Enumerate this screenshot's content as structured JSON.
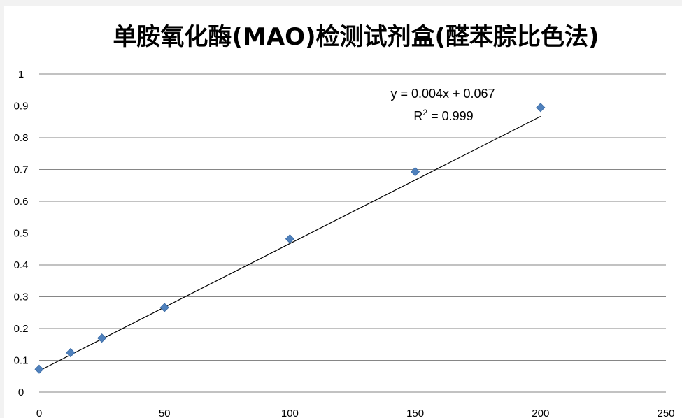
{
  "chart_data": {
    "type": "scatter",
    "title": "单胺氧化酶(MAO)检测试剂盒(醛苯腙比色法)",
    "xlabel": "",
    "ylabel": "",
    "xlim": [
      0,
      250
    ],
    "ylim": [
      0,
      1
    ],
    "x_ticks": [
      "0",
      "50",
      "100",
      "150",
      "200",
      "250"
    ],
    "y_ticks": [
      "0",
      "0.1",
      "0.2",
      "0.3",
      "0.4",
      "0.5",
      "0.6",
      "0.7",
      "0.8",
      "0.9",
      "1"
    ],
    "grid": true,
    "legend": "none",
    "series": [
      {
        "color": "#4f81bd",
        "marker": "diamond",
        "x": [
          0,
          12.5,
          25,
          50,
          100,
          150,
          200
        ],
        "y": [
          0.072,
          0.124,
          0.17,
          0.266,
          0.482,
          0.693,
          0.895
        ]
      }
    ],
    "trendline": {
      "type": "linear",
      "slope": 0.004,
      "intercept": 0.067,
      "color": "#000000",
      "x_range": [
        0,
        200
      ]
    },
    "annotations": {
      "equation": "y = 0.004x + 0.067",
      "r2_base": "R",
      "r2_sup": "2",
      "r2_rest": " = 0.999"
    }
  }
}
